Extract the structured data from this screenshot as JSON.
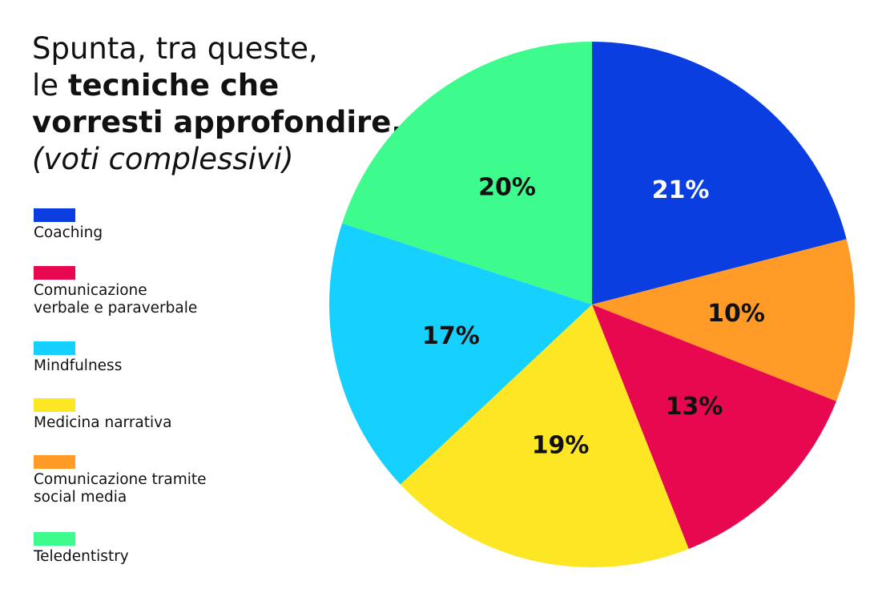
{
  "title": {
    "line1": "Spunta, tra queste,",
    "line2_prefix": "le ",
    "line2_bold": "tecniche che",
    "line3_bold": "vorresti approfondire.",
    "subtitle": "(voti complessivi)"
  },
  "chart_data": {
    "type": "pie",
    "categories": [
      "Coaching",
      "Comunicazione tramite social media",
      "Comunicazione verbale e paraverbale",
      "Medicina narrativa",
      "Mindfulness",
      "Teledentistry"
    ],
    "values": [
      21,
      10,
      13,
      19,
      17,
      20
    ],
    "labels": [
      "21%",
      "10%",
      "13%",
      "19%",
      "17%",
      "20%"
    ],
    "colors": [
      "#0a3ee0",
      "#ff9b26",
      "#e8084f",
      "#fde724",
      "#16d0ff",
      "#3dfc8d"
    ],
    "label_colors": [
      "#ffffff",
      "#111111",
      "#111111",
      "#111111",
      "#111111",
      "#111111"
    ],
    "start": "12 o'clock",
    "direction": "clockwise"
  },
  "legend": {
    "placement": "left",
    "items": [
      {
        "label": "Coaching",
        "color": "#0a3ee0"
      },
      {
        "label": "Comunicazione\nverbale e paraverbale",
        "color": "#e8084f"
      },
      {
        "label": "Mindfulness",
        "color": "#16d0ff"
      },
      {
        "label": "Medicina narrativa",
        "color": "#fde724"
      },
      {
        "label": "Comunicazione tramite\nsocial media",
        "color": "#ff9b26"
      },
      {
        "label": "Teledentistry",
        "color": "#3dfc8d"
      }
    ]
  }
}
